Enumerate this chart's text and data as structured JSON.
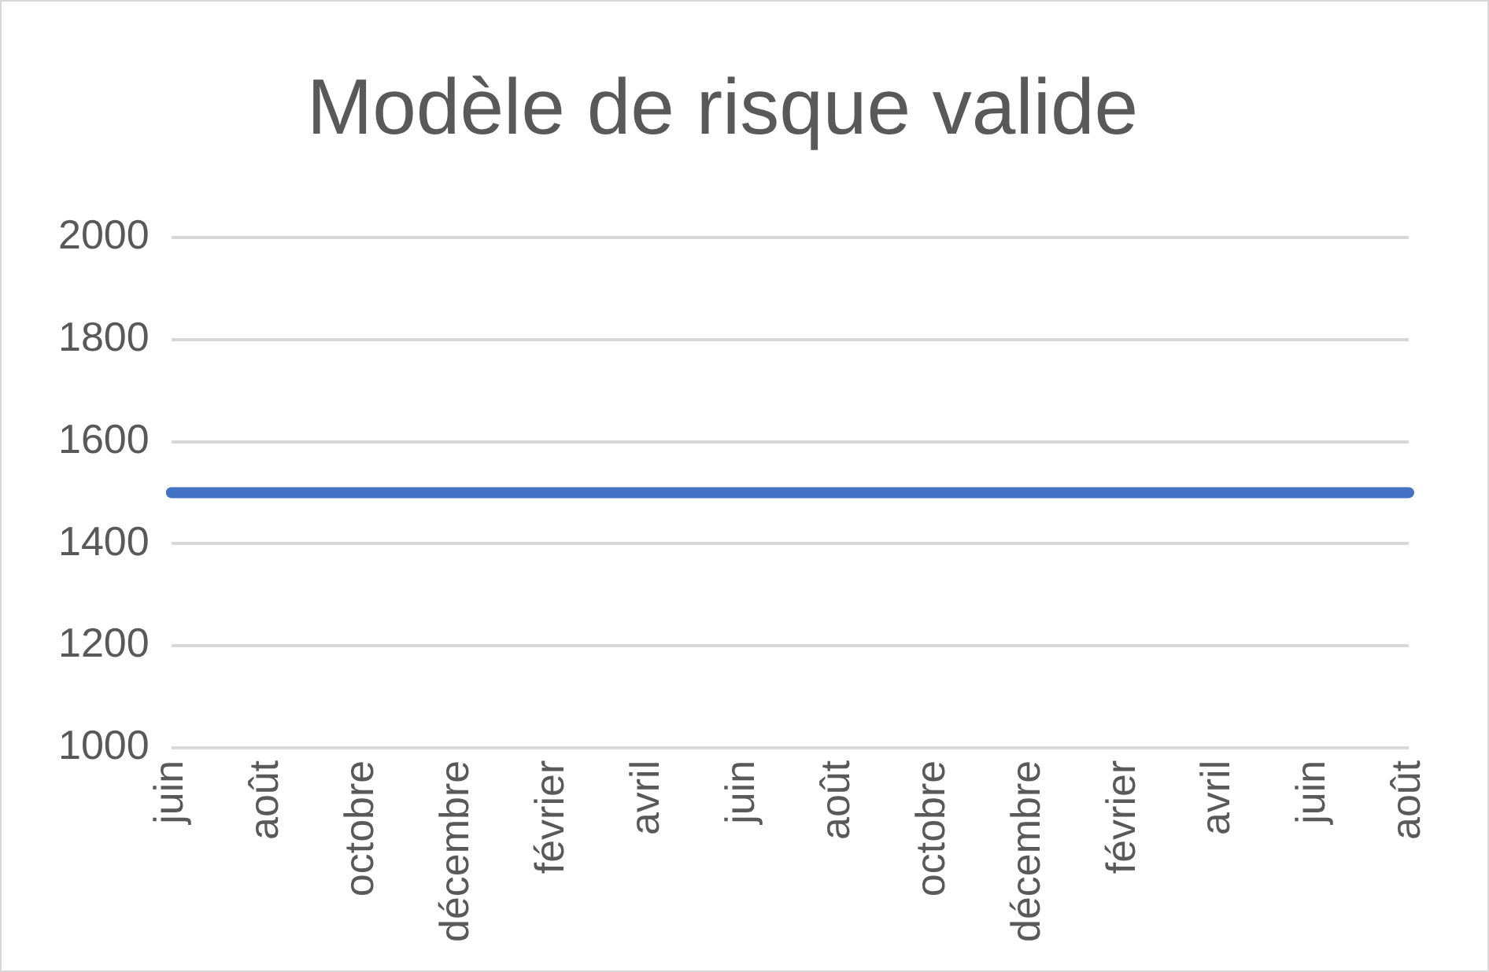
{
  "chart_data": {
    "type": "line",
    "title": "Modèle de risque valide",
    "categories": [
      "juin",
      null,
      "août",
      null,
      "octobre",
      null,
      "décembre",
      null,
      "février",
      null,
      "avril",
      null,
      "juin",
      null,
      "août",
      null,
      "octobre",
      null,
      "décembre",
      null,
      "février",
      null,
      "avril",
      null,
      "juin",
      null,
      "août"
    ],
    "series": [
      {
        "color": "#4472c4",
        "values": [
          1500,
          1500,
          1500,
          1500,
          1500,
          1500,
          1500,
          1500,
          1500,
          1500,
          1500,
          1500,
          1500,
          1500,
          1500,
          1500,
          1500,
          1500,
          1500,
          1500,
          1500,
          1500,
          1500,
          1500,
          1500,
          1500,
          1500
        ]
      }
    ],
    "ylim": [
      1000,
      2000
    ],
    "yticks": [
      1000,
      1200,
      1400,
      1600,
      1800,
      2000
    ],
    "grid": "y",
    "legend": false,
    "marker": "none",
    "line_style": "solid"
  }
}
